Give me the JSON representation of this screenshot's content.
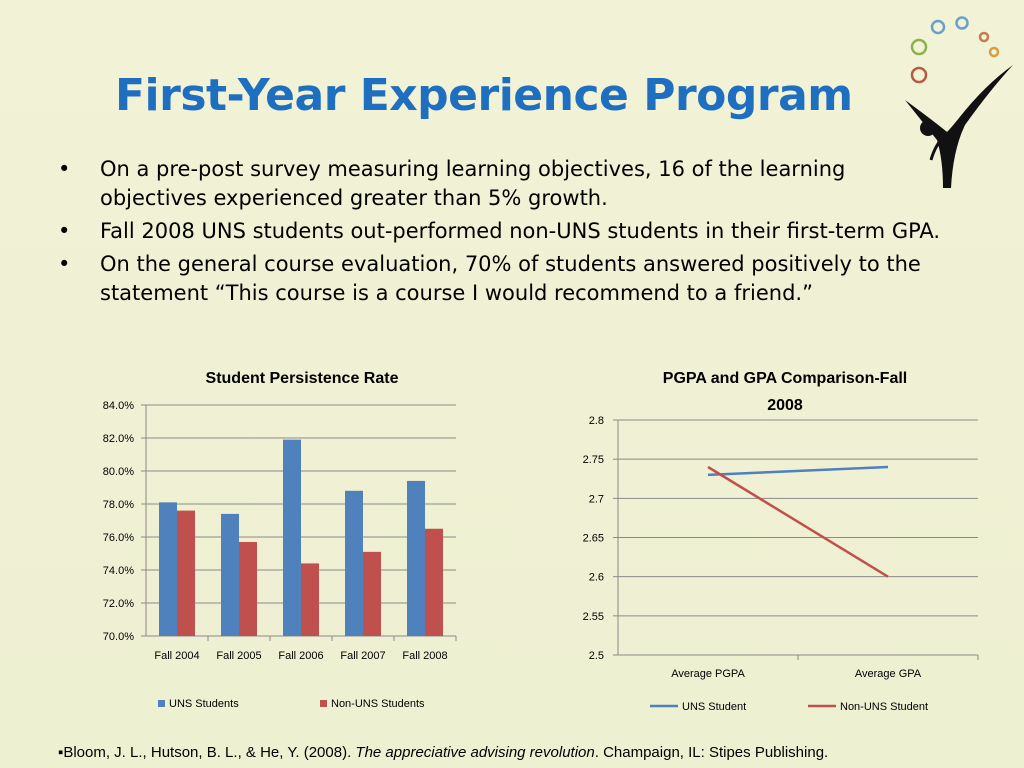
{
  "slide": {
    "title": "First-Year Experience Program",
    "bullets": [
      "On a pre-post survey measuring learning objectives, 16 of the learning objectives experienced greater than 5% growth.",
      "Fall 2008 UNS students out-performed non-UNS students in their first-term GPA.",
      "On the general course evaluation, 70% of students answered positively to the statement “This course is a course I would recommend to a friend.”"
    ],
    "bullet_glyph": "•",
    "footer": {
      "marker": "▪",
      "prefix": "Bloom, J. L., Hutson, B. L., & He, Y. (2008). ",
      "italic": "The appreciative advising revolution",
      "suffix": ". Champaign, IL:  Stipes Publishing."
    },
    "logo_icon": "person-with-circles-logo-icon",
    "colors": {
      "title": "#1f6fc0",
      "uns": "#4f81bd",
      "non_uns": "#c0504d",
      "background": "#f0f0d4"
    }
  },
  "chart_data": [
    {
      "type": "bar",
      "title": "Student Persistence Rate",
      "categories": [
        "Fall 2004",
        "Fall 2005",
        "Fall 2006",
        "Fall 2007",
        "Fall 2008"
      ],
      "series": [
        {
          "name": "UNS Students",
          "values": [
            78.1,
            77.4,
            81.9,
            78.8,
            79.4
          ]
        },
        {
          "name": "Non-UNS Students",
          "values": [
            77.6,
            75.7,
            74.4,
            75.1,
            76.5
          ]
        }
      ],
      "ylim": [
        70,
        84
      ],
      "yticks": [
        "70.0%",
        "72.0%",
        "74.0%",
        "76.0%",
        "78.0%",
        "80.0%",
        "82.0%",
        "84.0%"
      ],
      "grid": true,
      "legend": "bottom"
    },
    {
      "type": "line",
      "title": "PGPA and GPA Comparison-Fall 2008",
      "categories": [
        "Average PGPA",
        "Average GPA"
      ],
      "series": [
        {
          "name": "UNS Student",
          "values": [
            2.73,
            2.74
          ]
        },
        {
          "name": "Non-UNS Student",
          "values": [
            2.74,
            2.6
          ]
        }
      ],
      "ylim": [
        2.5,
        2.8
      ],
      "yticks": [
        "2.5",
        "2.55",
        "2.6",
        "2.65",
        "2.7",
        "2.75",
        "2.8"
      ],
      "grid": true,
      "legend": "bottom"
    }
  ]
}
